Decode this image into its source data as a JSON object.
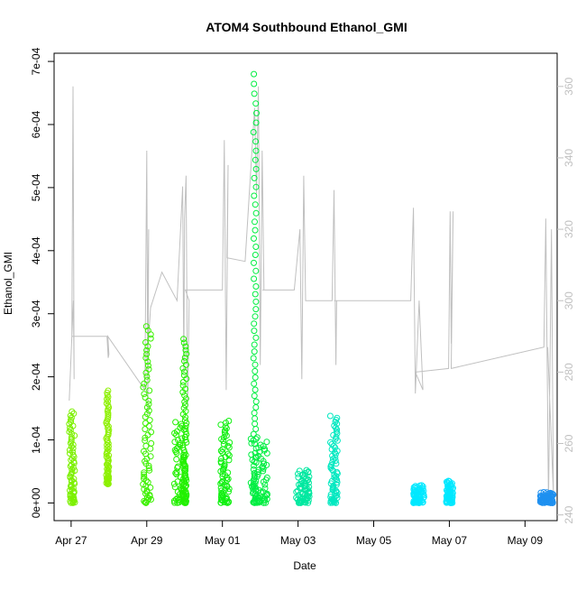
{
  "chart_data": {
    "type": "scatter",
    "title": "ATOM4 Southbound Ethanol_GMI",
    "xlabel": "Date",
    "ylabel": "Ethanol_GMI",
    "x_ticks": [
      "Apr 27",
      "Apr 29",
      "May 01",
      "May 03",
      "May 05",
      "May 07",
      "May 09"
    ],
    "x_tick_days": [
      0,
      2,
      4,
      6,
      8,
      10,
      12
    ],
    "xlim_days": [
      -0.45,
      12.85
    ],
    "y_ticks": [
      "0e+00",
      "1e-04",
      "2e-04",
      "3e-04",
      "4e-04",
      "5e-04",
      "6e-04",
      "7e-04"
    ],
    "y_tick_values": [
      0,
      0.0001,
      0.0002,
      0.0003,
      0.0004,
      0.0005,
      0.0006,
      0.0007
    ],
    "ylim": [
      -2.8e-05,
      0.000713
    ],
    "right_axis": {
      "ticks": [
        "240",
        "260",
        "280",
        "300",
        "320",
        "340",
        "360"
      ],
      "tick_values": [
        240,
        260,
        280,
        300,
        320,
        340,
        360
      ],
      "ylim": [
        238.4,
        369.3
      ],
      "color": "#c0c0c0"
    },
    "grid": false,
    "point_style": "open-circle",
    "series": [
      {
        "color": "#7cf000",
        "clusters": [
          {
            "x": [
              -0.05,
              0.1
            ],
            "y": [
              0.0,
              0.000145
            ]
          }
        ]
      },
      {
        "color": "#8cf000",
        "clusters": [
          {
            "x": [
              0.93,
              1.0
            ],
            "y": [
              3e-05,
              0.000178
            ]
          }
        ]
      },
      {
        "color": "#3cf000",
        "clusters": [
          {
            "x": [
              1.9,
              2.12
            ],
            "y": [
              0.0,
              0.00028
            ]
          }
        ]
      },
      {
        "color": "#22f000",
        "clusters": [
          {
            "x": [
              2.72,
              3.05
            ],
            "y": [
              0.0,
              0.000128
            ]
          },
          {
            "x": [
              2.95,
              3.05
            ],
            "y": [
              0.0,
              0.00026
            ]
          }
        ]
      },
      {
        "color": "#10f010",
        "clusters": [
          {
            "x": [
              3.95,
              4.2
            ],
            "y": [
              0.0,
              0.00013
            ]
          }
        ]
      },
      {
        "color": "#00ee40",
        "clusters": [
          {
            "x": [
              4.75,
              5.2
            ],
            "y": [
              0.0,
              0.000104
            ]
          },
          {
            "x": [
              4.82,
              4.9
            ],
            "y": [
              0.0,
              0.00068
            ]
          }
        ]
      },
      {
        "color": "#00e8a0",
        "clusters": [
          {
            "x": [
              5.95,
              6.3
            ],
            "y": [
              0.0,
              5.2e-05
            ]
          }
        ]
      },
      {
        "color": "#00e8c0",
        "clusters": [
          {
            "x": [
              6.85,
              7.05
            ],
            "y": [
              0.0,
              0.000138
            ]
          }
        ]
      },
      {
        "color": "#00e8ff",
        "clusters": [
          {
            "x": [
              9.05,
              9.35
            ],
            "y": [
              0.0,
              2.8e-05
            ]
          },
          {
            "x": [
              9.92,
              10.1
            ],
            "y": [
              0.0,
              3.5e-05
            ]
          }
        ]
      },
      {
        "color": "#1e90f0",
        "clusters": [
          {
            "x": [
              12.4,
              12.75
            ],
            "y": [
              0.0,
              1.7e-05
            ]
          }
        ]
      }
    ],
    "secondary_line": {
      "color": "#c0c0c0",
      "x": [
        -0.05,
        0.02,
        0.05,
        0.08,
        0.06,
        0.02,
        0.95,
        0.98,
        1.0,
        0.97,
        1.95,
        2.0,
        2.03,
        2.05,
        2.01,
        2.1,
        2.4,
        2.8,
        2.95,
        2.98,
        3.0,
        3.04,
        3.08,
        3.12,
        3.02,
        4.0,
        4.05,
        4.1,
        4.15,
        4.12,
        4.6,
        4.85,
        4.9,
        4.95,
        5.0,
        5.05,
        5.1,
        5.18,
        5.05,
        5.9,
        6.05,
        6.1,
        6.15,
        6.2,
        6.9,
        6.95,
        7.0,
        7.02,
        6.95,
        8.98,
        9.05,
        9.1,
        9.2,
        9.3,
        9.1,
        9.98,
        10.02,
        10.05,
        10.1,
        10.05,
        12.5,
        12.55,
        12.62,
        12.7,
        12.75,
        12.6
      ],
      "y": [
        272,
        290,
        360,
        278,
        300,
        290,
        290,
        284,
        285,
        290,
        275,
        342,
        268,
        320,
        283,
        298,
        308,
        300,
        332,
        280,
        323,
        335,
        270,
        300,
        303,
        303,
        345,
        275,
        338,
        312,
        311,
        354,
        330,
        360,
        282,
        342,
        303,
        303,
        303,
        303,
        320,
        278,
        335,
        300,
        300,
        331,
        282,
        300,
        300,
        300,
        326,
        274,
        300,
        275,
        280,
        281,
        325,
        288,
        325,
        281,
        287,
        323,
        243,
        320,
        246,
        287
      ]
    }
  }
}
